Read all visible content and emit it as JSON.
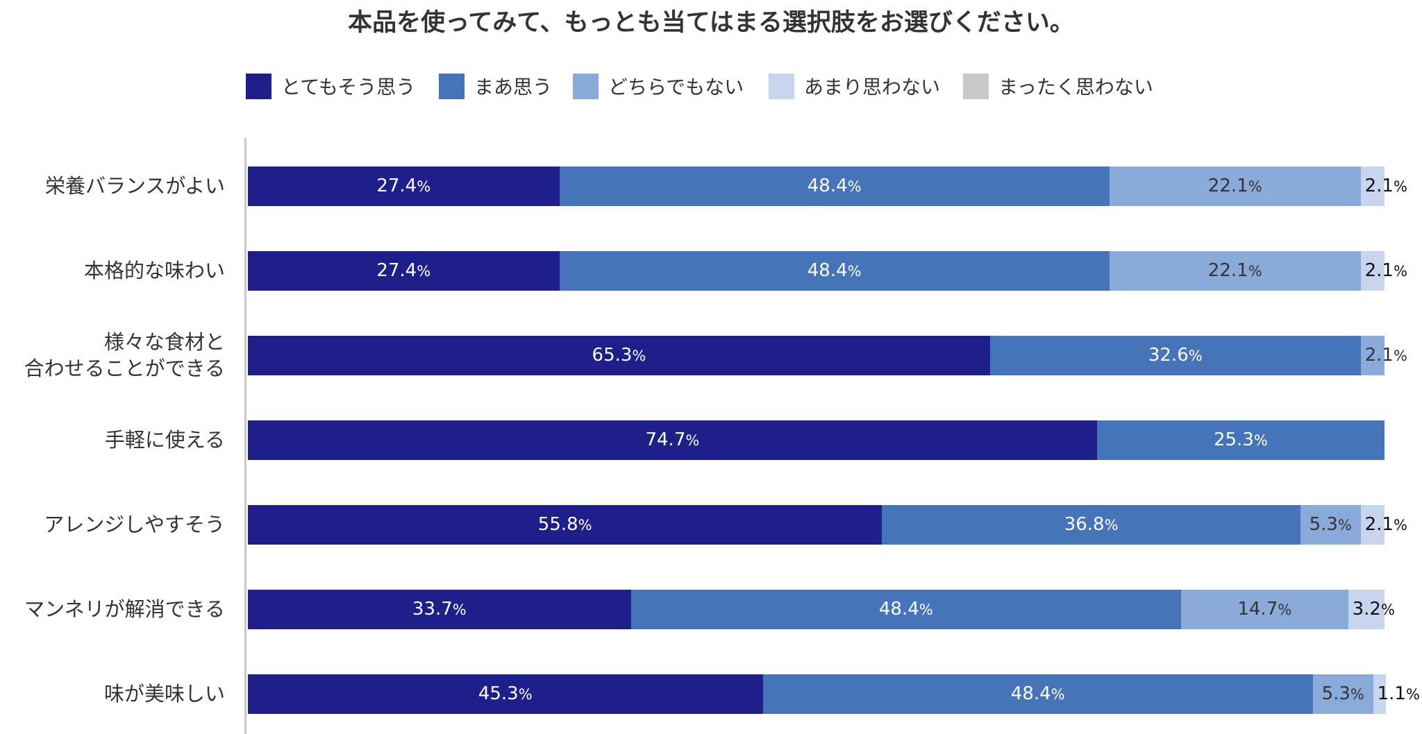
{
  "chart_data": {
    "type": "bar",
    "orientation": "horizontal",
    "stacked": true,
    "title": "本品を使ってみて、もっとも当てはまる選択肢をお選びください。",
    "legend_position": "top",
    "xlim": [
      0,
      100
    ],
    "unit": "%",
    "grid": false,
    "categories": [
      "栄養バランスがよい",
      "本格的な味わい",
      "様々な食材と\n合わせることができる",
      "手軽に使える",
      "アレンジしやすそう",
      "マンネリが解消できる",
      "味が美味しい"
    ],
    "series": [
      {
        "name": "とてもそう思う",
        "color": "#1e1f8a",
        "label_color": "#ffffff",
        "values": [
          27.4,
          27.4,
          65.3,
          74.7,
          55.8,
          33.7,
          45.3
        ]
      },
      {
        "name": "まあ思う",
        "color": "#4674b9",
        "label_color": "#ffffff",
        "values": [
          48.4,
          48.4,
          32.6,
          25.3,
          36.8,
          48.4,
          48.4
        ]
      },
      {
        "name": "どちらでもない",
        "color": "#8aaad9",
        "label_color": "#333333",
        "values": [
          22.1,
          22.1,
          2.1,
          null,
          5.3,
          14.7,
          5.3
        ]
      },
      {
        "name": "あまり思わない",
        "color": "#c7d5ef",
        "label_color": "#111111",
        "values": [
          2.1,
          2.1,
          null,
          null,
          2.1,
          3.2,
          1.1
        ]
      },
      {
        "name": "まったく思わない",
        "color": "#c9c8c9",
        "label_color": "#111111",
        "values": [
          null,
          null,
          null,
          null,
          null,
          null,
          null
        ]
      }
    ]
  }
}
